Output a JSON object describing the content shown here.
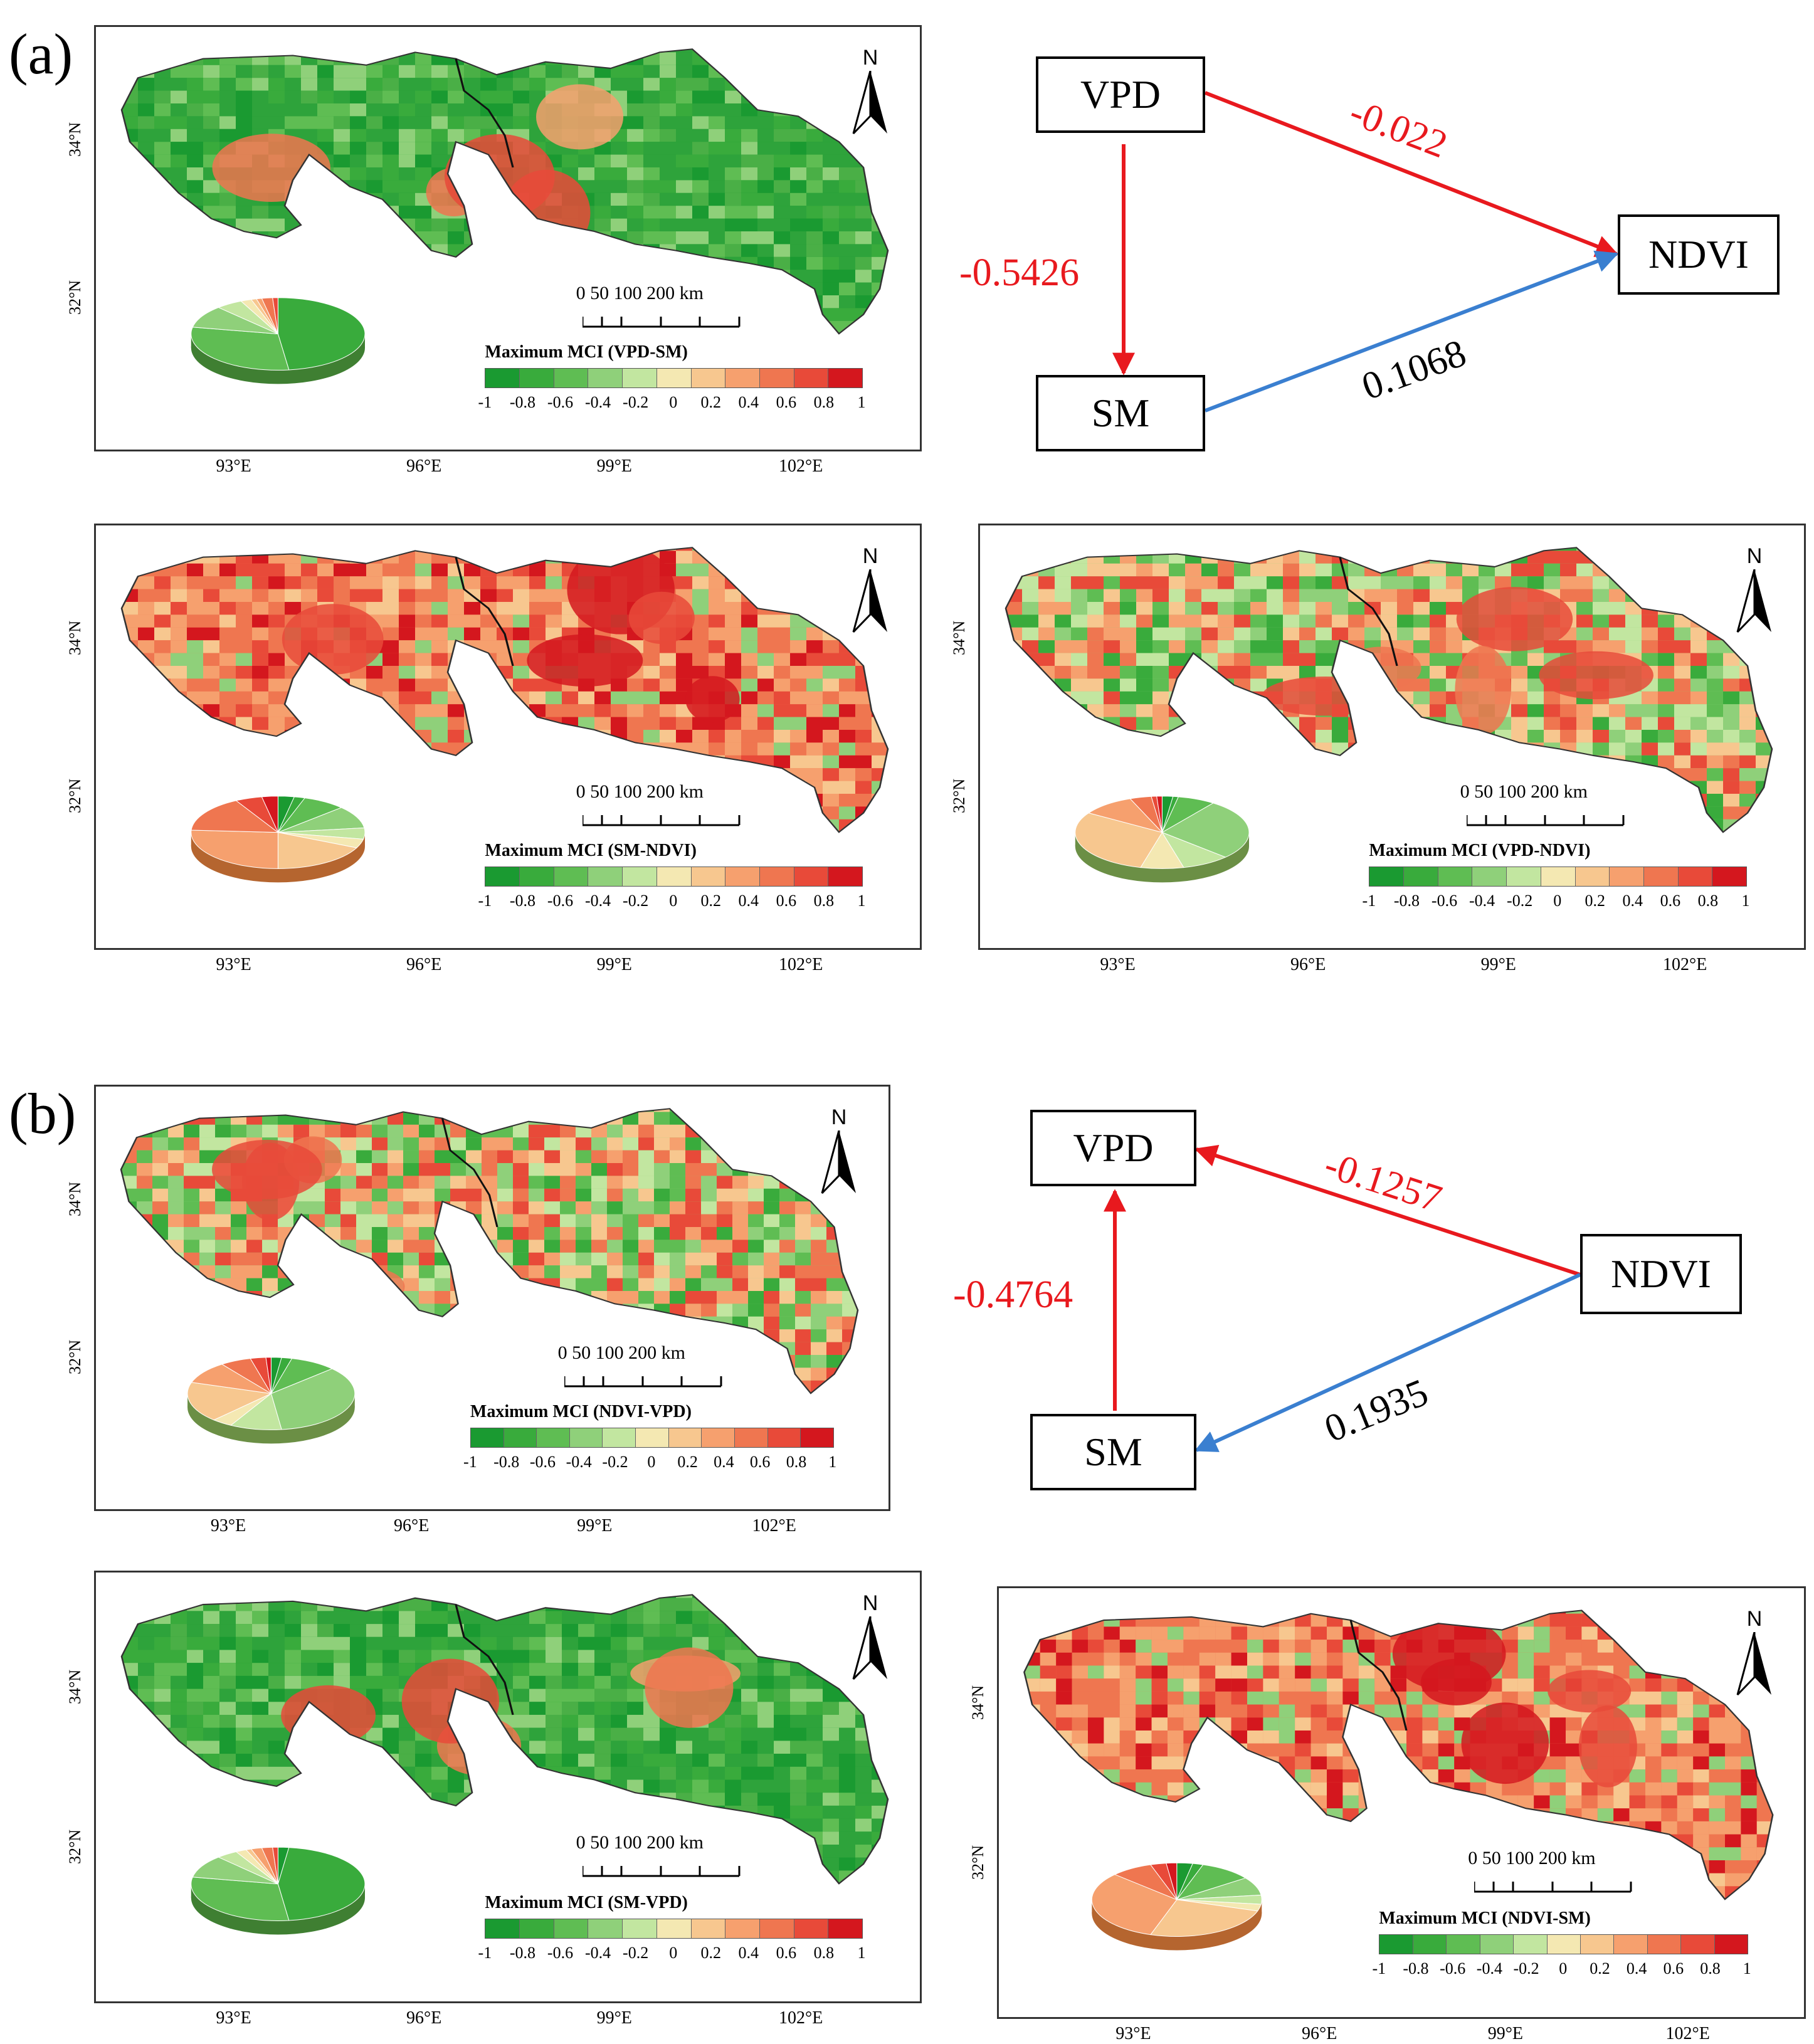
{
  "panel_a_label": "(a)",
  "panel_b_label": "(b)",
  "lat_labels": [
    "34°N",
    "32°N"
  ],
  "lon_labels": [
    "93°E",
    "96°E",
    "99°E",
    "102°E"
  ],
  "north_label": "N",
  "scale_bar": {
    "text": "0   50 100        200 km"
  },
  "legend": {
    "ticks": [
      "-1",
      "-0.8",
      "-0.6",
      "-0.4",
      "-0.2",
      "0",
      "0.2",
      "0.4",
      "0.6",
      "0.8",
      "1"
    ],
    "colors": [
      "#1a9a31",
      "#39ab3c",
      "#5fbd53",
      "#8fd07a",
      "#c2e6a0",
      "#f4e8b2",
      "#f7c78f",
      "#f6a06e",
      "#ef7650",
      "#e84a39",
      "#d4171e"
    ]
  },
  "maps": [
    {
      "title": "Maximum MCI (VPD-SM)",
      "tone": "green"
    },
    {
      "title": "Maximum MCI (SM-NDVI)",
      "tone": "red"
    },
    {
      "title": "Maximum MCI (VPD-NDVI)",
      "tone": "mixed"
    },
    {
      "title": "Maximum MCI (NDVI-VPD)",
      "tone": "mixed"
    },
    {
      "title": "Maximum MCI (SM-VPD)",
      "tone": "green"
    },
    {
      "title": "Maximum MCI (NDVI-SM)",
      "tone": "red"
    }
  ],
  "path_a": {
    "nodes": {
      "vpd": "VPD",
      "ndvi": "NDVI",
      "sm": "SM"
    },
    "coefficients": {
      "vpd_ndvi": "-0.022",
      "vpd_sm": "-0.5426",
      "sm_ndvi": "0.1068"
    }
  },
  "path_b": {
    "nodes": {
      "vpd": "VPD",
      "ndvi": "NDVI",
      "sm": "SM"
    },
    "coefficients": {
      "ndvi_vpd": "-0.1257",
      "sm_vpd": "-0.4764",
      "ndvi_sm": "0.1935"
    }
  },
  "colors": {
    "negative": "#e8191e",
    "positive": "#3a7fd0"
  }
}
